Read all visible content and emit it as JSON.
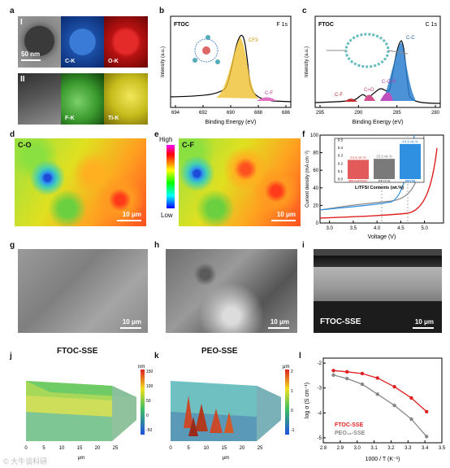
{
  "panels": {
    "a": {
      "letter": "a",
      "row1": "I",
      "row2": "II",
      "scale": "50 nm",
      "maps": [
        "C-K",
        "O-K",
        "F-K",
        "Ti-K"
      ]
    },
    "b": {
      "letter": "b",
      "tag": "FTOC",
      "spectrum": "F 1s",
      "peak": "CF3",
      "peak2": "C-F",
      "ylabel": "Intensity (a.u.)",
      "xlabel": "Binding Energy (eV)",
      "xticks": [
        "694",
        "692",
        "690",
        "688",
        "686"
      ]
    },
    "c": {
      "letter": "c",
      "tag": "FTOC",
      "spectrum": "C 1s",
      "peaks": [
        "C-C",
        "C-O-R",
        "C=O",
        "C-F"
      ],
      "ylabel": "Intensity (a.u.)",
      "xlabel": "Binding Energy (eV)",
      "xticks": [
        "295",
        "290",
        "285",
        "280"
      ]
    },
    "d": {
      "letter": "d",
      "tag": "C-O",
      "scale": "10 μm"
    },
    "e": {
      "letter": "e",
      "tag": "C-F",
      "scale": "10 μm",
      "high": "High",
      "low": "Low"
    },
    "f": {
      "letter": "f",
      "ylabel": "Current density (mA cm⁻²)",
      "xlabel": "Voltage (V)",
      "inset_title": "LiTFSI Contents (wt.%)"
    },
    "g": {
      "letter": "g",
      "scale": "10 μm"
    },
    "h": {
      "letter": "h",
      "scale": "10 μm"
    },
    "i": {
      "letter": "i",
      "scale": "10 μm",
      "tag": "FTOC-SSE"
    },
    "j": {
      "letter": "j",
      "title": "FTOC-SSE",
      "unit": "nm",
      "xlabel": "μm"
    },
    "k": {
      "letter": "k",
      "title": "PEO-SSE",
      "unit": "μm",
      "xlabel": "μm"
    },
    "l": {
      "letter": "l",
      "ylabel": "log σ (S cm⁻¹)",
      "xlabel": "1000 / T (K⁻¹)",
      "legend1": "FTOC-SSE",
      "legend2": "PEO₁₈-SSE"
    }
  },
  "watermark": "©  大牛谈科研",
  "chart_data": [
    {
      "type": "line",
      "panel": "f",
      "x_range": [
        2.8,
        5.4
      ],
      "y_range": [
        0,
        100
      ],
      "xticks": [
        "3.0",
        "3.5",
        "4.0",
        "4.5",
        "5.0"
      ],
      "yticks": [
        "0",
        "20",
        "40",
        "60",
        "80",
        "100"
      ],
      "series": []
    },
    {
      "type": "bar",
      "panel": "f-inset",
      "categories": [
        "PEO-FTOC",
        "PEO18",
        "PEO8"
      ],
      "values": [
        24.6,
        25.9,
        44.9
      ],
      "labels": [
        "24.6 wt.%",
        "25.9 wt.%",
        "44.9 wt.%"
      ],
      "colors": [
        "#e35a5a",
        "#7a7a7a",
        "#2f8fe0"
      ],
      "ylim": [
        0,
        0.5
      ],
      "yticks": [
        "0.0",
        "0.1",
        "0.2",
        "0.3",
        "0.4",
        "0.5"
      ],
      "xlabel": "LiTFSI Contents (wt.%)"
    },
    {
      "type": "line",
      "panel": "l",
      "xlim": [
        2.8,
        3.5
      ],
      "ylim": [
        -5.2,
        -1.8
      ],
      "xticks": [
        "2.8",
        "2.9",
        "3.0",
        "3.1",
        "3.2",
        "3.3",
        "3.4",
        "3.5"
      ],
      "yticks": [
        "-2",
        "-3",
        "-4",
        "-5"
      ],
      "series": [
        {
          "name": "FTOC-SSE",
          "color": "#e02020",
          "x": [
            2.86,
            2.94,
            3.03,
            3.12,
            3.22,
            3.32,
            3.41
          ],
          "y": [
            -2.3,
            -2.35,
            -2.42,
            -2.6,
            -2.95,
            -3.4,
            -3.95
          ]
        },
        {
          "name": "PEO18-SSE",
          "color": "#888888",
          "x": [
            2.86,
            2.94,
            3.03,
            3.12,
            3.22,
            3.32,
            3.41
          ],
          "y": [
            -2.48,
            -2.62,
            -2.85,
            -3.25,
            -3.7,
            -4.25,
            -4.95
          ]
        }
      ]
    }
  ]
}
